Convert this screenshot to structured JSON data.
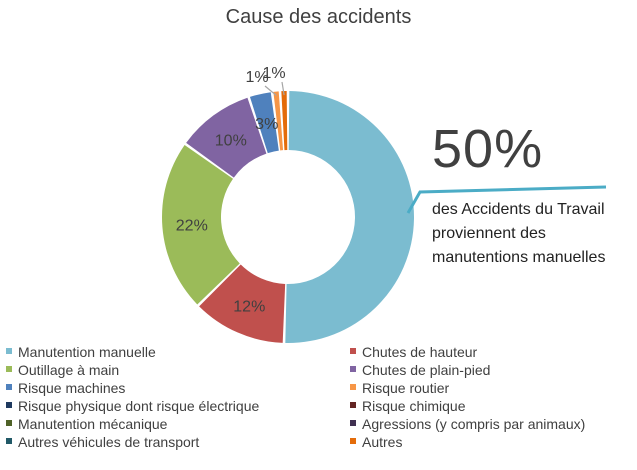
{
  "chart_data": {
    "type": "pie",
    "title": "Cause des accidents",
    "donut": true,
    "slices": [
      {
        "name": "Manutention manuelle",
        "value": 50,
        "label": "",
        "color": "#7bbcd0"
      },
      {
        "name": "Chutes de hauteur",
        "value": 12,
        "label": "12%",
        "color": "#c0504d"
      },
      {
        "name": "Outillage à main",
        "value": 22,
        "label": "22%",
        "color": "#9bbb59"
      },
      {
        "name": "Chutes de plain-pied",
        "value": 10,
        "label": "10%",
        "color": "#8064a2"
      },
      {
        "name": "Risque machines",
        "value": 3,
        "label": "3%",
        "color": "#4f81bd"
      },
      {
        "name": "Risque routier",
        "value": 1,
        "label": "1%",
        "color": "#f79646"
      },
      {
        "name": "Risque physique dont risque électrique",
        "value": 0,
        "label": "",
        "color": "#1f3a5f"
      },
      {
        "name": "Risque chimique",
        "value": 0,
        "label": "",
        "color": "#632523"
      },
      {
        "name": "Manutention mécanique",
        "value": 0,
        "label": "",
        "color": "#4f6228"
      },
      {
        "name": "Agressions (y compris par animaux)",
        "value": 0,
        "label": "",
        "color": "#403151"
      },
      {
        "name": "Autres véhicules de transport",
        "value": 0,
        "label": "",
        "color": "#215967"
      },
      {
        "name": "Autres",
        "value": 1,
        "label": "1%",
        "color": "#e46c0a"
      }
    ],
    "legend_position": "bottom",
    "callout": {
      "value": "50%",
      "text": "des Accidents du Travail proviennent des manutentions manuelles",
      "color": "#4bacc6"
    }
  }
}
